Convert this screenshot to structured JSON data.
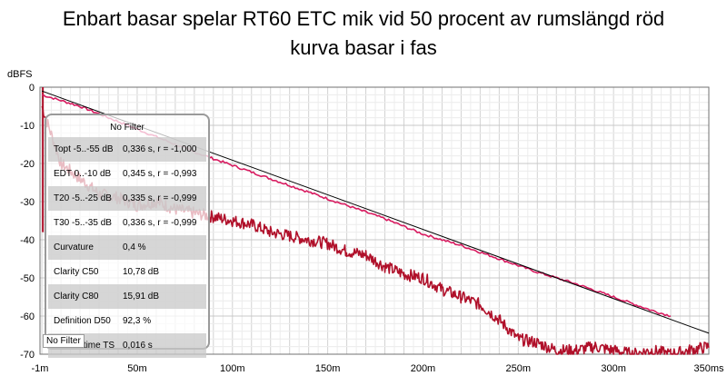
{
  "chart_data": {
    "type": "line",
    "title": "Enbart basar spelar RT60 ETC mik vid 50 procent av rumslängd röd",
    "subtitle": "kurva basar i fas",
    "ylabel": "dBFS",
    "xlabel": "",
    "xlim": [
      -1,
      350
    ],
    "ylim": [
      -70,
      0
    ],
    "x_ticks": [
      "-1m",
      "50m",
      "100m",
      "150m",
      "200m",
      "250m",
      "300m",
      "350ms"
    ],
    "x_tick_values": [
      -1,
      50,
      100,
      150,
      200,
      250,
      300,
      350
    ],
    "y_ticks": [
      "0",
      "-10",
      "-20",
      "-30",
      "-40",
      "-50",
      "-60",
      "-70"
    ],
    "y_tick_values": [
      0,
      -10,
      -20,
      -30,
      -40,
      -50,
      -60,
      -70
    ],
    "grid": true,
    "series": [
      {
        "color": "#d81b60",
        "x": [
          0,
          20,
          40,
          60,
          80,
          100,
          120,
          140,
          160,
          180,
          200,
          220,
          240,
          260,
          280,
          300,
          320,
          330
        ],
        "y": [
          -2,
          -5,
          -9,
          -13,
          -17,
          -20.5,
          -24,
          -27.5,
          -31,
          -34.5,
          -38.5,
          -41.5,
          -45,
          -48.5,
          -51.5,
          -55,
          -58.5,
          -60
        ]
      },
      {
        "color": "#000000",
        "x": [
          0,
          350
        ],
        "y": [
          -1,
          -64.5
        ]
      },
      {
        "color": "#b0102a",
        "x": [
          0,
          10,
          20,
          30,
          40,
          50,
          60,
          70,
          80,
          90,
          100,
          110,
          120,
          130,
          140,
          150,
          160,
          170,
          180,
          190,
          200,
          210,
          220,
          230,
          240,
          250,
          260,
          270,
          280,
          290,
          300,
          310,
          320,
          330,
          340,
          350
        ],
        "y": [
          -5,
          -20,
          -24,
          -28,
          -29,
          -31,
          -30,
          -32,
          -33,
          -34,
          -35,
          -36,
          -38,
          -39,
          -40,
          -41,
          -43,
          -44,
          -47,
          -49,
          -50,
          -53,
          -55,
          -57,
          -61,
          -66,
          -67,
          -69,
          -69,
          -68,
          -69,
          -70,
          -69,
          -70,
          -69,
          -68
        ]
      }
    ],
    "overlay": {
      "header": "No Filter",
      "rows": [
        {
          "label": "Topt -5..-55 dB",
          "value": "0,336 s,  r = -1,000"
        },
        {
          "label": "EDT  0..-10 dB",
          "value": "0,345 s,  r = -0,993"
        },
        {
          "label": "T20 -5..-25 dB",
          "value": "0,335 s,  r = -0,999"
        },
        {
          "label": "T30 -5..-35 dB",
          "value": "0,336 s,  r = -0,999"
        },
        {
          "label": "Curvature",
          "value": "0,4 %"
        },
        {
          "label": "Clarity C50",
          "value": "10,78 dB"
        },
        {
          "label": "Clarity C80",
          "value": "15,91 dB"
        },
        {
          "label": "Definition D50",
          "value": "92,3 %"
        },
        {
          "label": "Centre time TS",
          "value": "0,016 s"
        }
      ]
    },
    "legend": [
      "No Filter"
    ]
  }
}
